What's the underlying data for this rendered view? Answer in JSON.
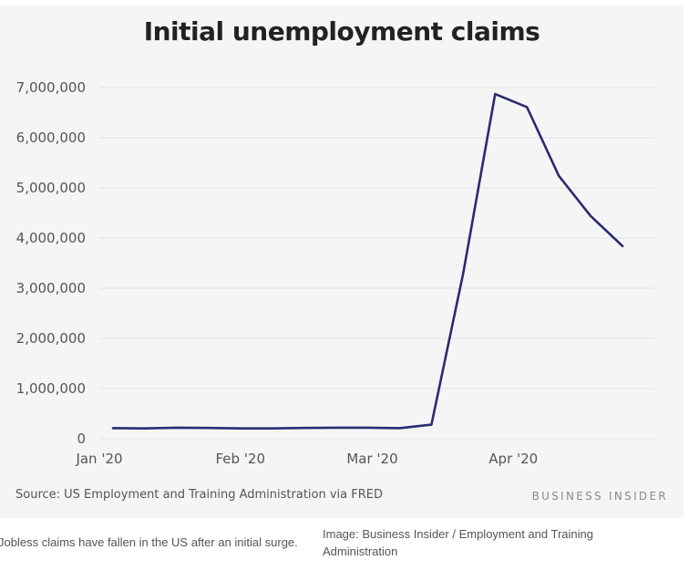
{
  "chart_data": {
    "type": "line",
    "title": "Initial unemployment claims",
    "x": [
      "2020-01-04",
      "2020-01-11",
      "2020-01-18",
      "2020-01-25",
      "2020-02-01",
      "2020-02-08",
      "2020-02-15",
      "2020-02-22",
      "2020-02-29",
      "2020-03-07",
      "2020-03-14",
      "2020-03-21",
      "2020-03-28",
      "2020-04-04",
      "2020-04-11",
      "2020-04-18",
      "2020-04-25"
    ],
    "x_ticks": [
      "Jan '20",
      "Feb '20",
      "Mar '20",
      "Apr '20"
    ],
    "x_tick_values": [
      "2020-01-01",
      "2020-02-01",
      "2020-03-01",
      "2020-04-01"
    ],
    "series": [
      {
        "values": [
          210000,
          205000,
          220000,
          215000,
          205000,
          205000,
          215000,
          220000,
          220000,
          210000,
          280000,
          3300000,
          6870000,
          6610000,
          5240000,
          4440000,
          3840000
        ],
        "color": "#2b2a73"
      }
    ],
    "y_ticks": [
      "0",
      "1,000,000",
      "2,000,000",
      "3,000,000",
      "4,000,000",
      "5,000,000",
      "6,000,000",
      "7,000,000"
    ],
    "ylim": [
      0,
      7000000
    ],
    "grid": true
  },
  "footer": {
    "source": "Source: US Employment and Training Administration via FRED",
    "brand": "BUSINESS INSIDER"
  },
  "caption": "Jobless claims have fallen in the US after an initial surge.",
  "credit": "Image: Business Insider / Employment and Training Administration"
}
